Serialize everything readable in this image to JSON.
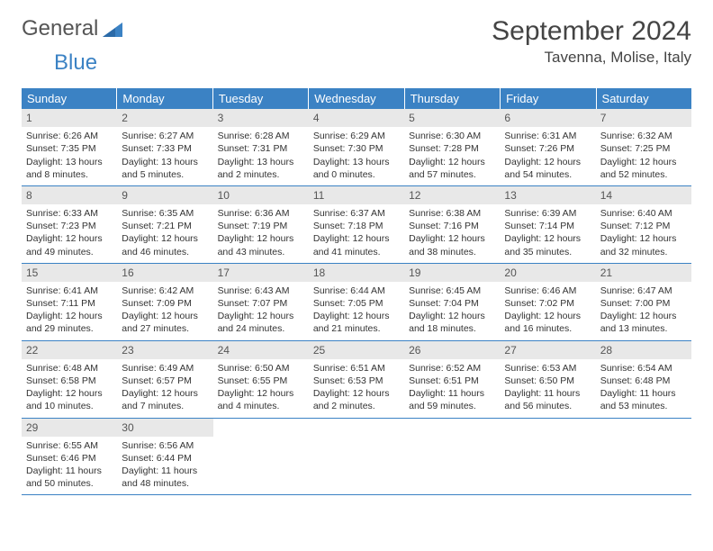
{
  "logo": {
    "text1": "General",
    "text2": "Blue"
  },
  "title": "September 2024",
  "location": "Tavenna, Molise, Italy",
  "colors": {
    "header_bg": "#3b82c4",
    "header_text": "#ffffff",
    "daynum_bg": "#e8e8e8",
    "border": "#3b82c4",
    "body_text": "#333333"
  },
  "weekdays": [
    "Sunday",
    "Monday",
    "Tuesday",
    "Wednesday",
    "Thursday",
    "Friday",
    "Saturday"
  ],
  "weeks": [
    [
      {
        "n": "1",
        "sr": "6:26 AM",
        "ss": "7:35 PM",
        "dl": "13 hours and 8 minutes."
      },
      {
        "n": "2",
        "sr": "6:27 AM",
        "ss": "7:33 PM",
        "dl": "13 hours and 5 minutes."
      },
      {
        "n": "3",
        "sr": "6:28 AM",
        "ss": "7:31 PM",
        "dl": "13 hours and 2 minutes."
      },
      {
        "n": "4",
        "sr": "6:29 AM",
        "ss": "7:30 PM",
        "dl": "13 hours and 0 minutes."
      },
      {
        "n": "5",
        "sr": "6:30 AM",
        "ss": "7:28 PM",
        "dl": "12 hours and 57 minutes."
      },
      {
        "n": "6",
        "sr": "6:31 AM",
        "ss": "7:26 PM",
        "dl": "12 hours and 54 minutes."
      },
      {
        "n": "7",
        "sr": "6:32 AM",
        "ss": "7:25 PM",
        "dl": "12 hours and 52 minutes."
      }
    ],
    [
      {
        "n": "8",
        "sr": "6:33 AM",
        "ss": "7:23 PM",
        "dl": "12 hours and 49 minutes."
      },
      {
        "n": "9",
        "sr": "6:35 AM",
        "ss": "7:21 PM",
        "dl": "12 hours and 46 minutes."
      },
      {
        "n": "10",
        "sr": "6:36 AM",
        "ss": "7:19 PM",
        "dl": "12 hours and 43 minutes."
      },
      {
        "n": "11",
        "sr": "6:37 AM",
        "ss": "7:18 PM",
        "dl": "12 hours and 41 minutes."
      },
      {
        "n": "12",
        "sr": "6:38 AM",
        "ss": "7:16 PM",
        "dl": "12 hours and 38 minutes."
      },
      {
        "n": "13",
        "sr": "6:39 AM",
        "ss": "7:14 PM",
        "dl": "12 hours and 35 minutes."
      },
      {
        "n": "14",
        "sr": "6:40 AM",
        "ss": "7:12 PM",
        "dl": "12 hours and 32 minutes."
      }
    ],
    [
      {
        "n": "15",
        "sr": "6:41 AM",
        "ss": "7:11 PM",
        "dl": "12 hours and 29 minutes."
      },
      {
        "n": "16",
        "sr": "6:42 AM",
        "ss": "7:09 PM",
        "dl": "12 hours and 27 minutes."
      },
      {
        "n": "17",
        "sr": "6:43 AM",
        "ss": "7:07 PM",
        "dl": "12 hours and 24 minutes."
      },
      {
        "n": "18",
        "sr": "6:44 AM",
        "ss": "7:05 PM",
        "dl": "12 hours and 21 minutes."
      },
      {
        "n": "19",
        "sr": "6:45 AM",
        "ss": "7:04 PM",
        "dl": "12 hours and 18 minutes."
      },
      {
        "n": "20",
        "sr": "6:46 AM",
        "ss": "7:02 PM",
        "dl": "12 hours and 16 minutes."
      },
      {
        "n": "21",
        "sr": "6:47 AM",
        "ss": "7:00 PM",
        "dl": "12 hours and 13 minutes."
      }
    ],
    [
      {
        "n": "22",
        "sr": "6:48 AM",
        "ss": "6:58 PM",
        "dl": "12 hours and 10 minutes."
      },
      {
        "n": "23",
        "sr": "6:49 AM",
        "ss": "6:57 PM",
        "dl": "12 hours and 7 minutes."
      },
      {
        "n": "24",
        "sr": "6:50 AM",
        "ss": "6:55 PM",
        "dl": "12 hours and 4 minutes."
      },
      {
        "n": "25",
        "sr": "6:51 AM",
        "ss": "6:53 PM",
        "dl": "12 hours and 2 minutes."
      },
      {
        "n": "26",
        "sr": "6:52 AM",
        "ss": "6:51 PM",
        "dl": "11 hours and 59 minutes."
      },
      {
        "n": "27",
        "sr": "6:53 AM",
        "ss": "6:50 PM",
        "dl": "11 hours and 56 minutes."
      },
      {
        "n": "28",
        "sr": "6:54 AM",
        "ss": "6:48 PM",
        "dl": "11 hours and 53 minutes."
      }
    ],
    [
      {
        "n": "29",
        "sr": "6:55 AM",
        "ss": "6:46 PM",
        "dl": "11 hours and 50 minutes."
      },
      {
        "n": "30",
        "sr": "6:56 AM",
        "ss": "6:44 PM",
        "dl": "11 hours and 48 minutes."
      },
      null,
      null,
      null,
      null,
      null
    ]
  ],
  "labels": {
    "sunrise": "Sunrise:",
    "sunset": "Sunset:",
    "daylight": "Daylight:"
  }
}
